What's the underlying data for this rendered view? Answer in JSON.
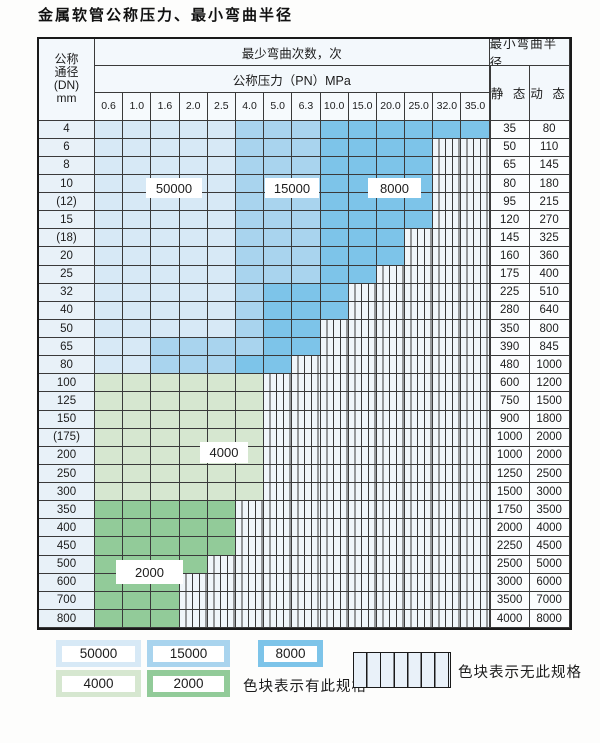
{
  "title": "金属软管公称压力、最小弯曲半径",
  "table": {
    "dn_header_lines": [
      "公称",
      "通径",
      "(DN)",
      "mm"
    ],
    "bend_times_header": "最少弯曲次数，次",
    "pressure_header": "公称压力（PN）MPa",
    "pressures": [
      "0.6",
      "1.0",
      "1.6",
      "2.0",
      "2.5",
      "4.0",
      "5.0",
      "6.3",
      "10.0",
      "15.0",
      "20.0",
      "25.0",
      "32.0",
      "35.0"
    ],
    "radius_header": "最小弯曲半径",
    "static_header": "静 态",
    "dynamic_header": "动 态",
    "rows": [
      {
        "dn": "4",
        "cells": "LLLLLMMMDDDDDD",
        "static": "35",
        "dynamic": "80"
      },
      {
        "dn": "6",
        "cells": "LLLLLMMMDDDDXX",
        "static": "50",
        "dynamic": "110"
      },
      {
        "dn": "8",
        "cells": "LLLLLMMMDDDDXX",
        "static": "65",
        "dynamic": "145"
      },
      {
        "dn": "10",
        "cells": "LLLLLMMMDDDDXX",
        "static": "80",
        "dynamic": "180"
      },
      {
        "dn": "(12)",
        "cells": "LLLLLMMMDDDDXX",
        "static": "95",
        "dynamic": "215"
      },
      {
        "dn": "15",
        "cells": "LLLLLMMMDDDDXX",
        "static": "120",
        "dynamic": "270"
      },
      {
        "dn": "(18)",
        "cells": "LLLLLMMMDDDXXX",
        "static": "145",
        "dynamic": "325"
      },
      {
        "dn": "20",
        "cells": "LLLLLMMMDDDXXX",
        "static": "160",
        "dynamic": "360"
      },
      {
        "dn": "25",
        "cells": "LLLLLMMMDDXXXX",
        "static": "175",
        "dynamic": "400"
      },
      {
        "dn": "32",
        "cells": "LLLLLMDDDXXXXX",
        "static": "225",
        "dynamic": "510"
      },
      {
        "dn": "40",
        "cells": "LLLLLMDDDXXXXX",
        "static": "280",
        "dynamic": "640"
      },
      {
        "dn": "50",
        "cells": "LLLLLMDDXXXXXX",
        "static": "350",
        "dynamic": "800"
      },
      {
        "dn": "65",
        "cells": "LLMMMMDDXXXXXX",
        "static": "390",
        "dynamic": "845"
      },
      {
        "dn": "80",
        "cells": "LLMMMDDXXXXXXX",
        "static": "480",
        "dynamic": "1000"
      },
      {
        "dn": "100",
        "cells": "AAAAAAXXXXXXXX",
        "static": "600",
        "dynamic": "1200"
      },
      {
        "dn": "125",
        "cells": "AAAAAAXXXXXXXX",
        "static": "750",
        "dynamic": "1500"
      },
      {
        "dn": "150",
        "cells": "AAAAAAXXXXXXXX",
        "static": "900",
        "dynamic": "1800"
      },
      {
        "dn": "(175)",
        "cells": "AAAAAAXXXXXXXX",
        "static": "1000",
        "dynamic": "2000"
      },
      {
        "dn": "200",
        "cells": "AAAAAAXXXXXXXX",
        "static": "1000",
        "dynamic": "2000"
      },
      {
        "dn": "250",
        "cells": "AAAAAAXXXXXXXX",
        "static": "1250",
        "dynamic": "2500"
      },
      {
        "dn": "300",
        "cells": "AAAAAAXXXXXXXX",
        "static": "1500",
        "dynamic": "3000"
      },
      {
        "dn": "350",
        "cells": "BBBBBXXXXXXXXX",
        "static": "1750",
        "dynamic": "3500"
      },
      {
        "dn": "400",
        "cells": "BBBBBXXXXXXXXX",
        "static": "2000",
        "dynamic": "4000"
      },
      {
        "dn": "450",
        "cells": "BBBBBXXXXXXXXX",
        "static": "2250",
        "dynamic": "4500"
      },
      {
        "dn": "500",
        "cells": "BBBBXXXXXXXXXX",
        "static": "2500",
        "dynamic": "5000"
      },
      {
        "dn": "600",
        "cells": "BBBXXXXXXXXXXX",
        "static": "3000",
        "dynamic": "6000"
      },
      {
        "dn": "700",
        "cells": "BBBXXXXXXXXXXX",
        "static": "3500",
        "dynamic": "7000"
      },
      {
        "dn": "800",
        "cells": "BBBXXXXXXXXXXX",
        "static": "4000",
        "dynamic": "8000"
      }
    ]
  },
  "category_colors": {
    "L": "#d7e9f6",
    "M": "#a9d4ee",
    "D": "#7dc4e9",
    "A": "#d6e7d0",
    "B": "#92cb99"
  },
  "markers": [
    {
      "label": "50000"
    },
    {
      "label": "15000"
    },
    {
      "label": "8000"
    },
    {
      "label": "4000"
    },
    {
      "label": "2000"
    }
  ],
  "legend": {
    "items": [
      {
        "label": "50000",
        "color": "#d7e9f6"
      },
      {
        "label": "15000",
        "color": "#a9d4ee"
      },
      {
        "label": "8000",
        "color": "#7dc4e9"
      },
      {
        "label": "4000",
        "color": "#d6e7d0"
      },
      {
        "label": "2000",
        "color": "#92cb99"
      }
    ],
    "has_spec_text": "色块表示有此规格",
    "no_spec_text": "色块表示无此规格"
  }
}
